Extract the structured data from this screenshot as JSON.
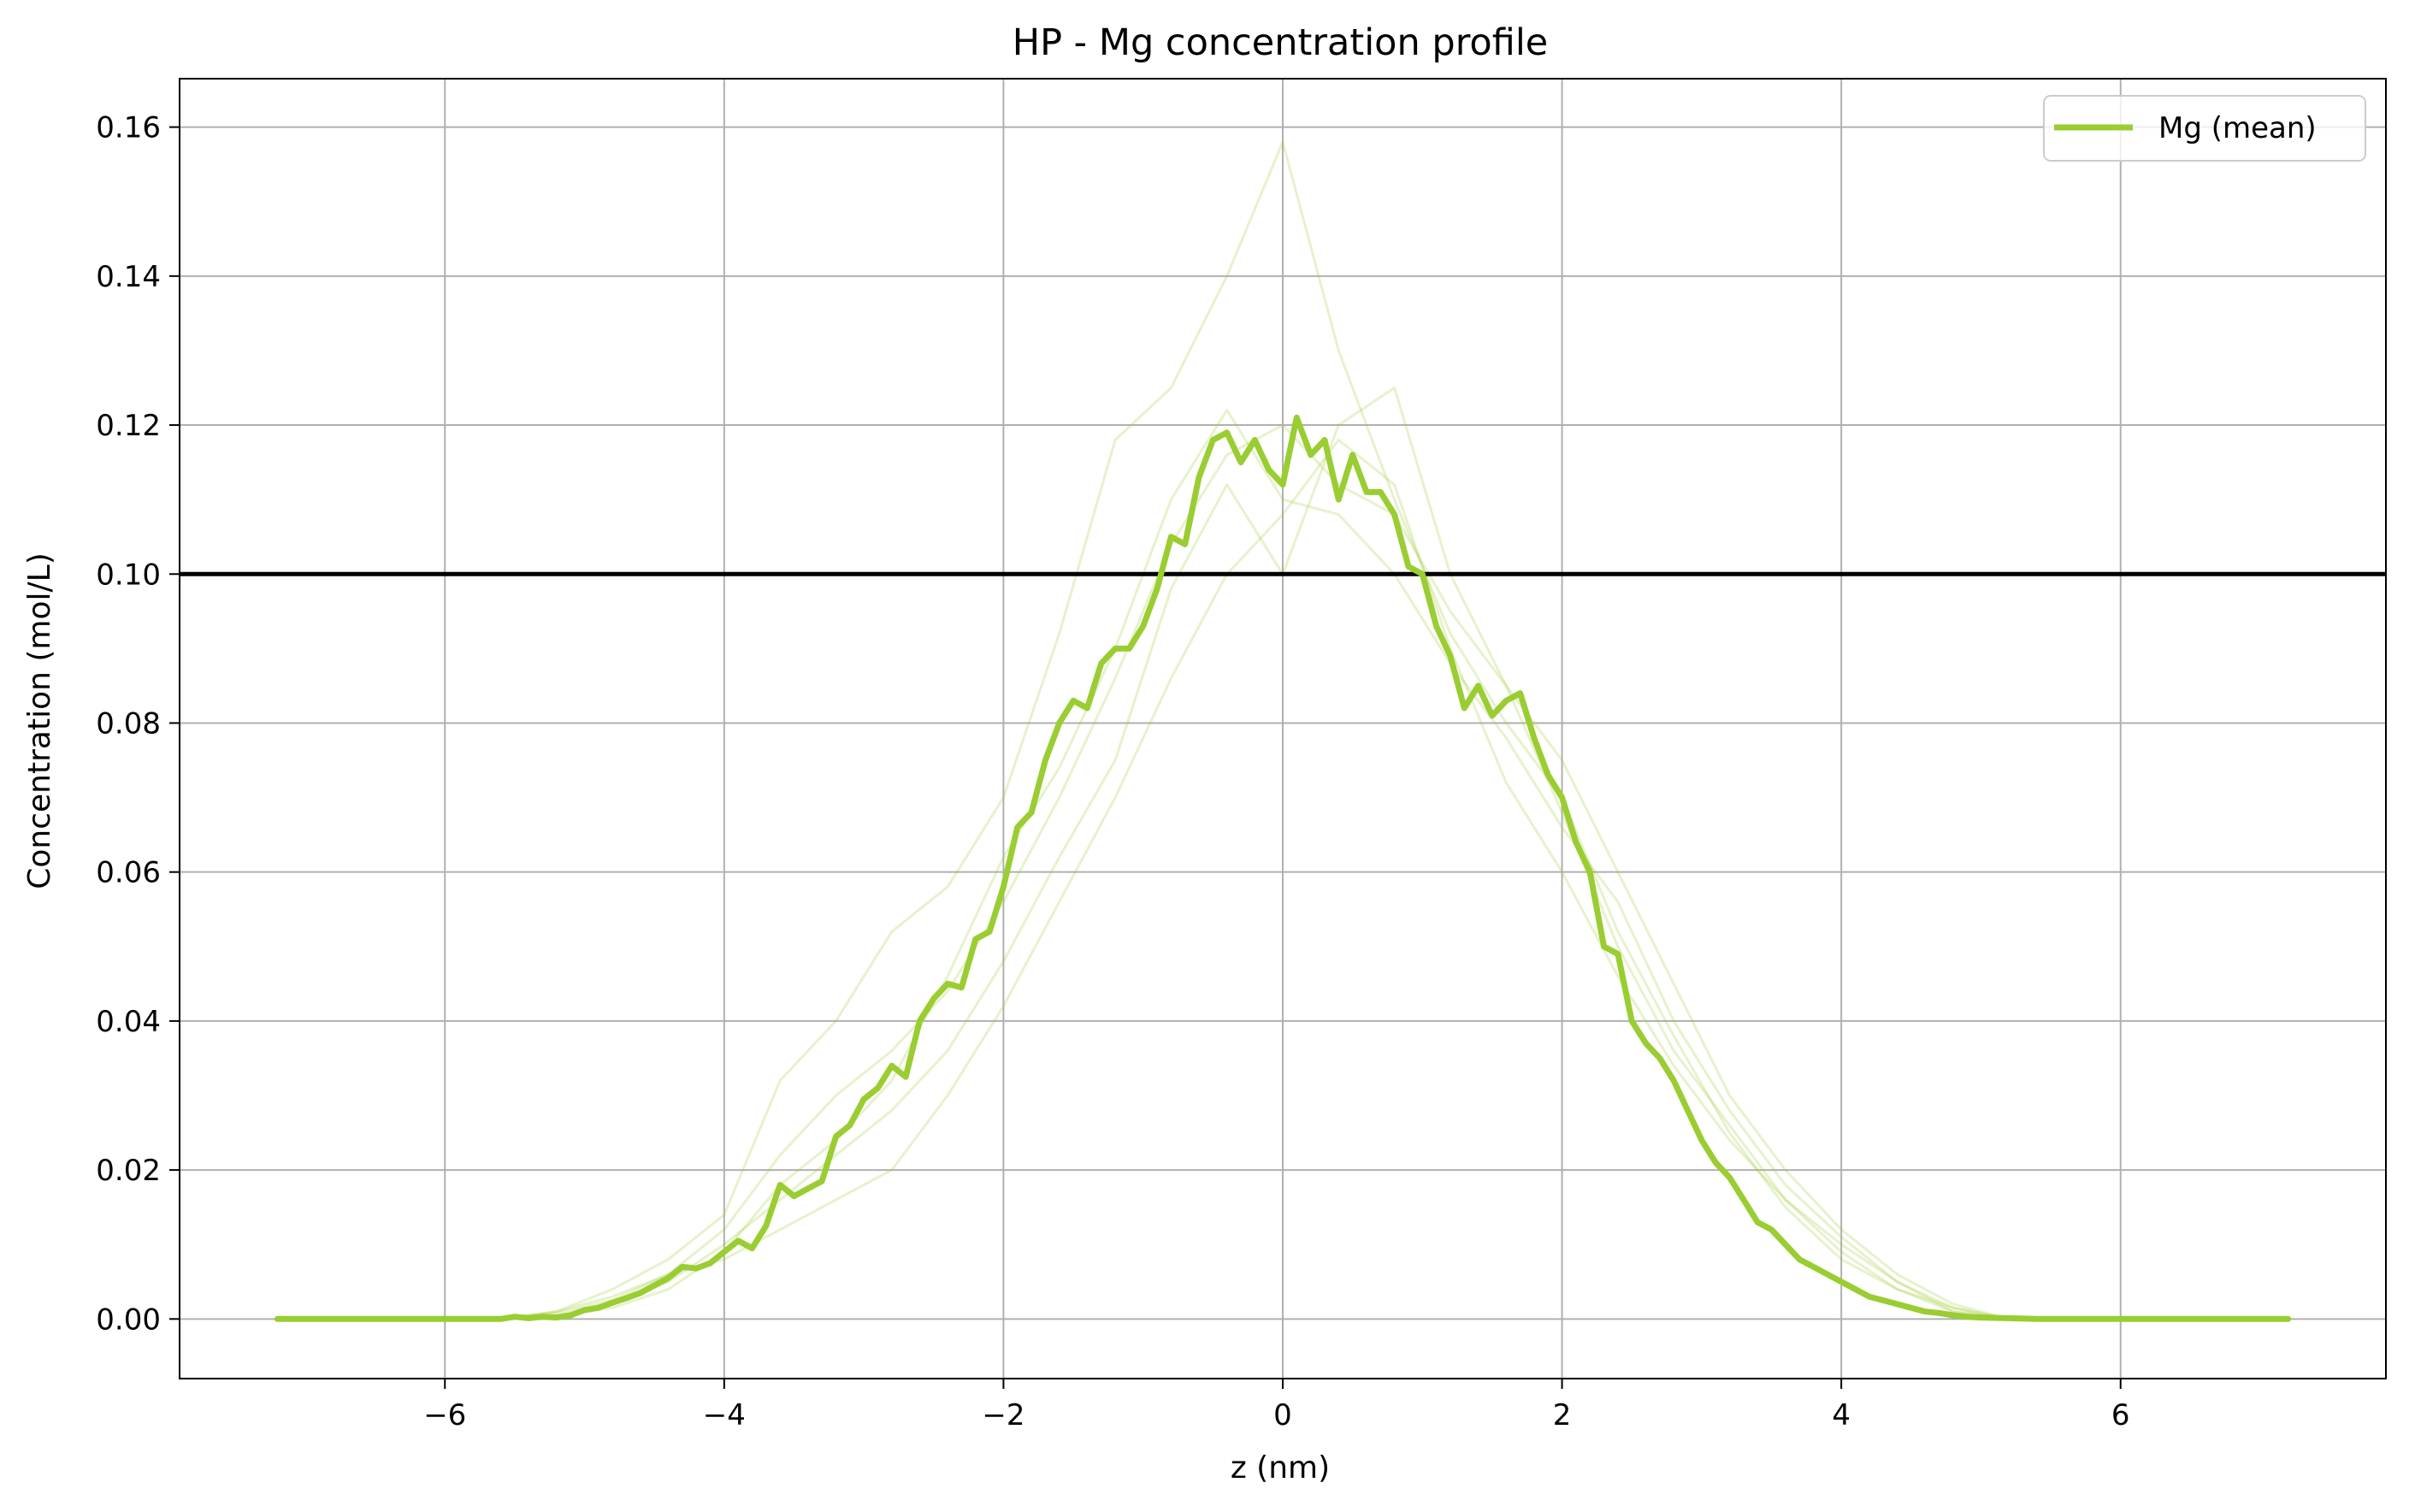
{
  "chart_data": {
    "type": "line",
    "title": "HP - Mg concentration profile",
    "xlabel": "z (nm)",
    "ylabel": "Concentration (mol/L)",
    "xlim": [
      -7.9,
      7.9
    ],
    "ylim": [
      -0.008,
      0.1665
    ],
    "xticks": [
      -6,
      -4,
      -2,
      0,
      2,
      4,
      6
    ],
    "xtick_labels": [
      "−6",
      "−4",
      "−2",
      "0",
      "2",
      "4",
      "6"
    ],
    "yticks": [
      0.0,
      0.02,
      0.04,
      0.06,
      0.08,
      0.1,
      0.12,
      0.14,
      0.16
    ],
    "ytick_labels": [
      "0.00",
      "0.02",
      "0.04",
      "0.06",
      "0.08",
      "0.10",
      "0.12",
      "0.14",
      "0.16"
    ],
    "grid": true,
    "legend": {
      "placement": "top-right",
      "entries": [
        "Mg (mean)"
      ]
    },
    "reference_line": {
      "y": 0.1,
      "color": "#000000"
    },
    "colors": {
      "mean": "#9acd32",
      "replicas": "#9acd32"
    },
    "mean_series": {
      "name": "Mg (mean)",
      "x": [
        -7.2,
        -7.0,
        -6.8,
        -6.6,
        -6.4,
        -6.2,
        -6.0,
        -5.8,
        -5.6,
        -5.5,
        -5.4,
        -5.3,
        -5.2,
        -5.1,
        -5.0,
        -4.9,
        -4.8,
        -4.7,
        -4.6,
        -4.5,
        -4.4,
        -4.3,
        -4.2,
        -4.1,
        -4.0,
        -3.9,
        -3.8,
        -3.7,
        -3.6,
        -3.5,
        -3.4,
        -3.3,
        -3.2,
        -3.1,
        -3.0,
        -2.9,
        -2.8,
        -2.7,
        -2.6,
        -2.5,
        -2.4,
        -2.3,
        -2.2,
        -2.1,
        -2.0,
        -1.9,
        -1.8,
        -1.7,
        -1.6,
        -1.5,
        -1.4,
        -1.3,
        -1.2,
        -1.1,
        -1.0,
        -0.9,
        -0.8,
        -0.7,
        -0.6,
        -0.5,
        -0.4,
        -0.3,
        -0.2,
        -0.1,
        0.0,
        0.1,
        0.2,
        0.3,
        0.4,
        0.5,
        0.6,
        0.7,
        0.8,
        0.9,
        1.0,
        1.1,
        1.2,
        1.3,
        1.4,
        1.5,
        1.6,
        1.7,
        1.8,
        1.9,
        2.0,
        2.1,
        2.2,
        2.3,
        2.4,
        2.5,
        2.6,
        2.7,
        2.8,
        2.9,
        3.0,
        3.1,
        3.2,
        3.3,
        3.4,
        3.5,
        3.6,
        3.7,
        3.8,
        3.9,
        4.0,
        4.1,
        4.2,
        4.3,
        4.4,
        4.5,
        4.6,
        4.7,
        4.8,
        4.9,
        5.0,
        5.2,
        5.4,
        5.6,
        5.8,
        6.0,
        6.2,
        6.4,
        6.6,
        6.8,
        7.0,
        7.2
      ],
      "y": [
        0.0,
        0.0,
        0.0,
        0.0,
        0.0,
        0.0,
        0.0,
        0.0,
        0.0,
        0.0003,
        0.0001,
        0.0003,
        0.0002,
        0.0005,
        0.0012,
        0.0015,
        0.0022,
        0.0028,
        0.0035,
        0.0045,
        0.0055,
        0.007,
        0.0068,
        0.0075,
        0.009,
        0.0105,
        0.0095,
        0.0125,
        0.018,
        0.0165,
        0.0175,
        0.0185,
        0.0245,
        0.026,
        0.0295,
        0.031,
        0.034,
        0.0325,
        0.04,
        0.043,
        0.045,
        0.0445,
        0.051,
        0.052,
        0.058,
        0.066,
        0.068,
        0.075,
        0.08,
        0.083,
        0.082,
        0.088,
        0.09,
        0.09,
        0.093,
        0.098,
        0.105,
        0.104,
        0.113,
        0.118,
        0.119,
        0.115,
        0.118,
        0.114,
        0.112,
        0.121,
        0.116,
        0.118,
        0.11,
        0.116,
        0.111,
        0.111,
        0.108,
        0.101,
        0.1,
        0.093,
        0.089,
        0.082,
        0.085,
        0.081,
        0.083,
        0.084,
        0.078,
        0.073,
        0.07,
        0.064,
        0.06,
        0.05,
        0.049,
        0.04,
        0.037,
        0.035,
        0.032,
        0.028,
        0.024,
        0.021,
        0.019,
        0.016,
        0.013,
        0.012,
        0.01,
        0.008,
        0.007,
        0.006,
        0.005,
        0.004,
        0.003,
        0.0025,
        0.002,
        0.0015,
        0.001,
        0.0008,
        0.0005,
        0.0003,
        0.0002,
        0.0001,
        0.0,
        0.0,
        0.0,
        0.0,
        0.0,
        0.0,
        0.0,
        0.0,
        0.0,
        0.0
      ]
    },
    "replica_series": [
      {
        "x": [
          -5.6,
          -5.2,
          -4.8,
          -4.4,
          -4.0,
          -3.6,
          -3.2,
          -2.8,
          -2.4,
          -2.0,
          -1.6,
          -1.2,
          -0.8,
          -0.4,
          0.0,
          0.4,
          0.8,
          1.2,
          1.6,
          2.0,
          2.4,
          2.8,
          3.2,
          3.6,
          4.0,
          4.4,
          4.8,
          5.2
        ],
        "y": [
          0.0,
          0.001,
          0.004,
          0.008,
          0.014,
          0.032,
          0.04,
          0.052,
          0.058,
          0.07,
          0.092,
          0.118,
          0.125,
          0.14,
          0.158,
          0.13,
          0.11,
          0.092,
          0.08,
          0.07,
          0.052,
          0.038,
          0.025,
          0.015,
          0.008,
          0.004,
          0.001,
          0.0
        ]
      },
      {
        "x": [
          -5.6,
          -5.2,
          -4.8,
          -4.4,
          -4.0,
          -3.6,
          -3.2,
          -2.8,
          -2.4,
          -2.0,
          -1.6,
          -1.2,
          -0.8,
          -0.4,
          0.0,
          0.4,
          0.8,
          1.2,
          1.6,
          2.0,
          2.4,
          2.8,
          3.2,
          3.6,
          4.0,
          4.4,
          4.8,
          5.2
        ],
        "y": [
          0.0,
          0.0005,
          0.002,
          0.005,
          0.01,
          0.016,
          0.022,
          0.028,
          0.036,
          0.048,
          0.062,
          0.075,
          0.098,
          0.112,
          0.1,
          0.12,
          0.125,
          0.1,
          0.085,
          0.075,
          0.06,
          0.045,
          0.03,
          0.02,
          0.012,
          0.006,
          0.002,
          0.0
        ]
      },
      {
        "x": [
          -5.6,
          -5.2,
          -4.8,
          -4.4,
          -4.0,
          -3.6,
          -3.2,
          -2.8,
          -2.4,
          -2.0,
          -1.6,
          -1.2,
          -0.8,
          -0.4,
          0.0,
          0.4,
          0.8,
          1.2,
          1.6,
          2.0,
          2.4,
          2.8,
          3.2,
          3.6,
          4.0,
          4.4,
          4.8,
          5.2
        ],
        "y": [
          0.0,
          0.001,
          0.003,
          0.006,
          0.008,
          0.012,
          0.016,
          0.02,
          0.03,
          0.042,
          0.056,
          0.07,
          0.086,
          0.1,
          0.108,
          0.118,
          0.112,
          0.09,
          0.072,
          0.06,
          0.046,
          0.034,
          0.024,
          0.016,
          0.01,
          0.005,
          0.001,
          0.0
        ]
      },
      {
        "x": [
          -5.6,
          -5.2,
          -4.8,
          -4.4,
          -4.0,
          -3.6,
          -3.2,
          -2.8,
          -2.4,
          -2.0,
          -1.6,
          -1.2,
          -0.8,
          -0.4,
          0.0,
          0.4,
          0.8,
          1.2,
          1.6,
          2.0,
          2.4,
          2.8,
          3.2,
          3.6,
          4.0,
          4.4,
          4.8,
          5.2
        ],
        "y": [
          0.0,
          0.0008,
          0.0025,
          0.006,
          0.012,
          0.022,
          0.03,
          0.036,
          0.044,
          0.056,
          0.07,
          0.086,
          0.104,
          0.116,
          0.12,
          0.112,
          0.108,
          0.095,
          0.085,
          0.068,
          0.05,
          0.036,
          0.026,
          0.016,
          0.009,
          0.004,
          0.0015,
          0.0
        ]
      },
      {
        "x": [
          -5.6,
          -5.2,
          -4.8,
          -4.4,
          -4.0,
          -3.6,
          -3.2,
          -2.8,
          -2.4,
          -2.0,
          -1.6,
          -1.2,
          -0.8,
          -0.4,
          0.0,
          0.4,
          0.8,
          1.2,
          1.6,
          2.0,
          2.4,
          2.8,
          3.2,
          3.6,
          4.0,
          4.4,
          4.8,
          5.2
        ],
        "y": [
          0.0,
          0.0004,
          0.0015,
          0.004,
          0.009,
          0.018,
          0.024,
          0.032,
          0.046,
          0.062,
          0.074,
          0.09,
          0.11,
          0.122,
          0.11,
          0.108,
          0.1,
          0.088,
          0.078,
          0.066,
          0.056,
          0.04,
          0.028,
          0.018,
          0.011,
          0.005,
          0.0015,
          0.0
        ]
      }
    ]
  }
}
